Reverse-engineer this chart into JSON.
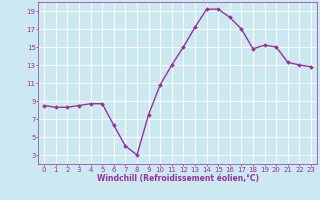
{
  "x": [
    0,
    1,
    2,
    3,
    4,
    5,
    6,
    7,
    8,
    9,
    10,
    11,
    12,
    13,
    14,
    15,
    16,
    17,
    18,
    19,
    20,
    21,
    22,
    23
  ],
  "y": [
    8.5,
    8.3,
    8.3,
    8.5,
    8.7,
    8.7,
    6.3,
    4.0,
    3.0,
    7.5,
    10.8,
    13.0,
    15.0,
    17.2,
    19.2,
    19.2,
    18.3,
    17.0,
    14.8,
    15.2,
    15.0,
    13.3,
    13.0,
    12.8
  ],
  "line_color": "#993399",
  "marker": "D",
  "marker_size": 2.0,
  "line_width": 1.0,
  "bg_color": "#cce8f0",
  "grid_color": "#ffffff",
  "xlabel": "Windchill (Refroidissement éolien,°C)",
  "xlabel_color": "#993399",
  "tick_color": "#993399",
  "label_color": "#993399",
  "ylim": [
    2,
    20
  ],
  "xlim": [
    -0.5,
    23.5
  ],
  "yticks": [
    3,
    5,
    7,
    9,
    11,
    13,
    15,
    17,
    19
  ],
  "xticks": [
    0,
    1,
    2,
    3,
    4,
    5,
    6,
    7,
    8,
    9,
    10,
    11,
    12,
    13,
    14,
    15,
    16,
    17,
    18,
    19,
    20,
    21,
    22,
    23
  ],
  "tick_fontsize": 5.0,
  "xlabel_fontsize": 5.5
}
